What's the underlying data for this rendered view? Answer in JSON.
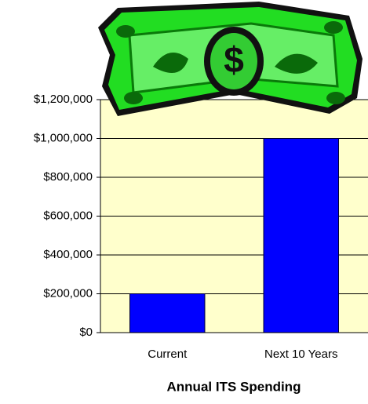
{
  "chart_data": {
    "type": "bar",
    "x_label": "Annual ITS Spending",
    "categories": [
      "Current",
      "Next 10 Years"
    ],
    "values": [
      200000,
      1000000
    ],
    "color": "#0000ff",
    "ylim": [
      0,
      1200000
    ],
    "yticks": [
      {
        "value": 0,
        "label": "$0"
      },
      {
        "value": 200000,
        "label": "$200,000"
      },
      {
        "value": 400000,
        "label": "$400,000"
      },
      {
        "value": 600000,
        "label": "$600,000"
      },
      {
        "value": 800000,
        "label": "$800,000"
      },
      {
        "value": 1000000,
        "label": "$1,000,000"
      },
      {
        "value": 1200000,
        "label": "$1,200,000"
      }
    ],
    "grid": true
  }
}
